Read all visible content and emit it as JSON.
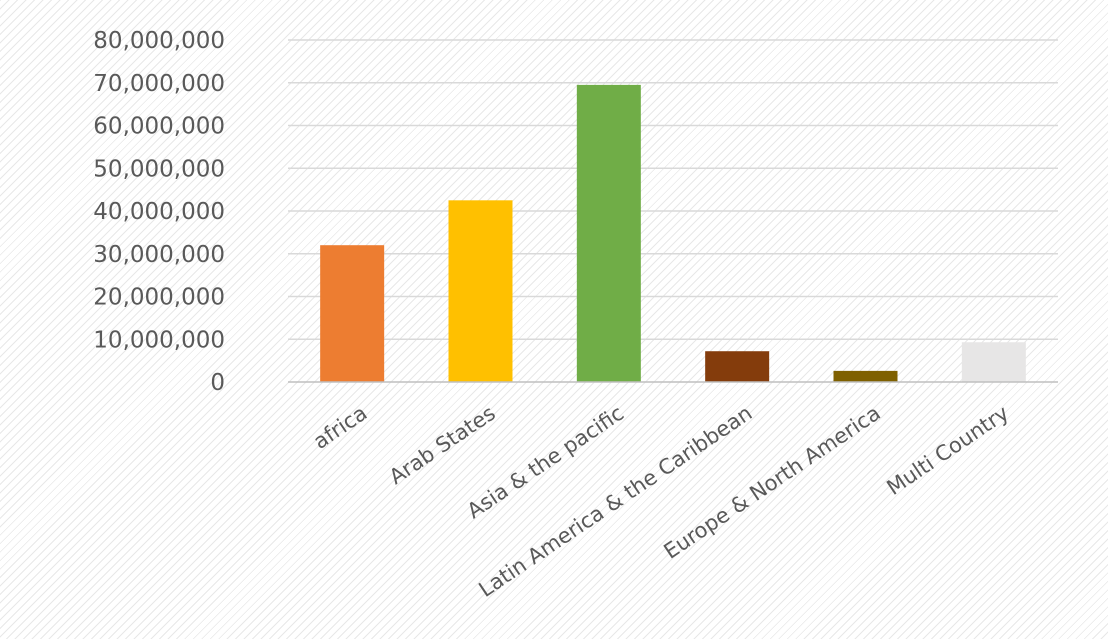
{
  "chart_data": {
    "type": "bar",
    "categories": [
      "africa",
      "Arab States",
      "Asia & the pacific",
      "Latin America & the Caribbean",
      "Europe & North America",
      "Multi Country"
    ],
    "values": [
      32000000,
      42500000,
      69500000,
      7200000,
      2600000,
      9300000
    ],
    "colors": [
      "#ED7D31",
      "#FFC000",
      "#70AD47",
      "#843C0C",
      "#7F6000",
      "#E7E6E6"
    ],
    "yticks": [
      "0",
      "10,000,000",
      "20,000,000",
      "30,000,000",
      "40,000,000",
      "50,000,000",
      "60,000,000",
      "70,000,000",
      "80,000,000"
    ],
    "ylim": [
      0,
      80000000
    ],
    "grid": true,
    "legend": "none"
  }
}
